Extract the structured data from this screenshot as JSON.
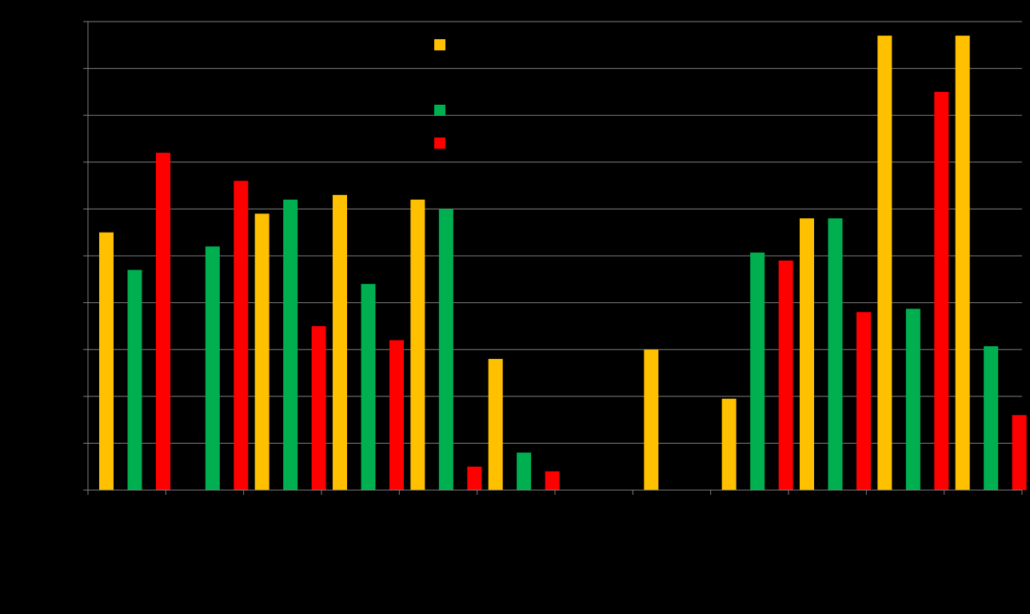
{
  "chart_data": {
    "type": "bar",
    "categories": [
      "",
      "",
      "",
      "",
      "",
      "",
      "",
      "",
      "",
      "",
      "",
      ""
    ],
    "series": [
      {
        "values": [
          5.5,
          0,
          5.9,
          6.3,
          6.2,
          2.8,
          0,
          3.0,
          1.95,
          5.8,
          9.7,
          9.7
        ]
      },
      {
        "values": [
          4.7,
          5.2,
          6.2,
          4.4,
          6.0,
          0.8,
          0,
          0,
          5.07,
          5.8,
          3.87,
          3.07
        ]
      },
      {
        "values": [
          7.2,
          6.6,
          3.5,
          3.2,
          0.5,
          0.4,
          0,
          0,
          4.9,
          3.8,
          8.5,
          1.6
        ]
      }
    ],
    "ylim": [
      0,
      10
    ],
    "grid": true,
    "legend": "top-center",
    "colors": [
      "#FFC000",
      "#00B050",
      "#FF0000"
    ]
  },
  "colors": {
    "background": "#000000",
    "grid": "#808080",
    "axis": "#808080"
  }
}
